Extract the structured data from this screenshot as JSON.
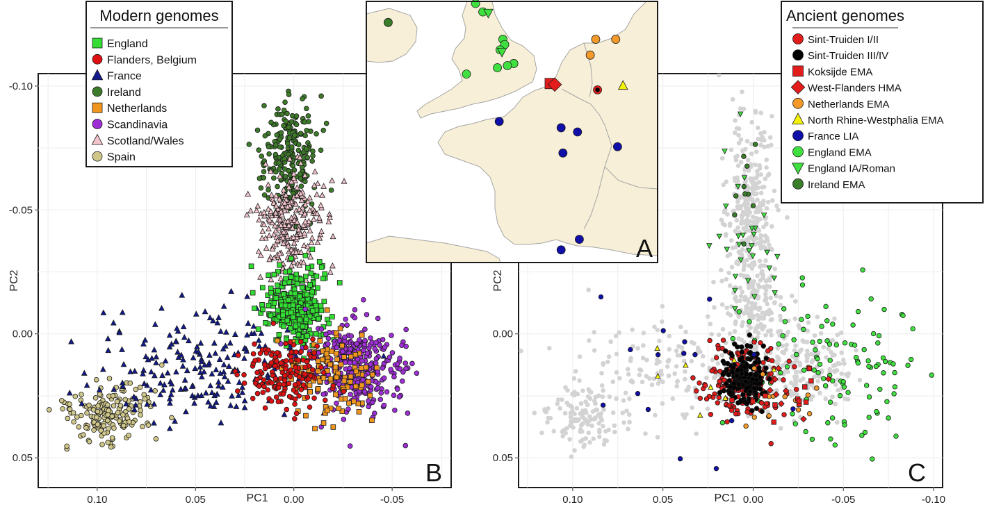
{
  "colors": {
    "England": "#33dd33",
    "Flanders": "#dd1111",
    "France": "#121a8c",
    "Ireland": "#3d7a2a",
    "Netherlands": "#f0961e",
    "Scandinavia": "#9e2fd6",
    "ScotlandWales": "#f2c3ca",
    "Spain": "#cfc68a",
    "SintTruiden12": "#e31c1c",
    "SintTruiden34": "#000000",
    "Koksijde": "#e31c1c",
    "WestFlanders": "#e31c1c",
    "NetherlandsEMA": "#f39a2a",
    "NRW": "#f5f20a",
    "FranceLIA": "#1010a8",
    "EnglandEMA": "#40e040",
    "EnglandIA": "#40e040",
    "IrelandEMA": "#3a7d2a",
    "background": "#d3d3d3",
    "map_land": "#f7efd7",
    "map_sea": "#ffffff"
  },
  "chart_data": [
    {
      "id": "B",
      "type": "scatter",
      "panel_label": "B",
      "xlabel": "PC1",
      "ylabel": "PC2",
      "x_reversed": true,
      "y_reversed": true,
      "xlim": [
        0.13,
        -0.08
      ],
      "ylim": [
        -0.105,
        0.062
      ],
      "xticks": [
        0.1,
        0.05,
        0.0,
        -0.05
      ],
      "xtick_labels": [
        "0.10",
        "0.05",
        "0.00",
        "-0.05"
      ],
      "yticks": [
        -0.1,
        -0.05,
        0.0,
        0.05
      ],
      "ytick_labels": [
        "-0.10",
        "-0.05",
        "0.00",
        "0.05"
      ],
      "grid": true,
      "legend": {
        "title": "Modern genomes",
        "entries": [
          {
            "label": "England",
            "marker": "square",
            "color": "#33dd33"
          },
          {
            "label": "Flanders, Belgium",
            "marker": "circle",
            "color": "#dd1111"
          },
          {
            "label": "France",
            "marker": "triangle",
            "color": "#121a8c"
          },
          {
            "label": "Ireland",
            "marker": "circle",
            "color": "#3d7a2a"
          },
          {
            "label": "Netherlands",
            "marker": "square",
            "color": "#f0961e"
          },
          {
            "label": "Scandinavia",
            "marker": "circle",
            "color": "#9e2fd6"
          },
          {
            "label": "Scotland/Wales",
            "marker": "triangle",
            "color": "#f2c3ca"
          },
          {
            "label": "Spain",
            "marker": "circle",
            "color": "#cfc68a"
          }
        ]
      },
      "clusters": [
        {
          "name": "Spain",
          "marker": "circle",
          "color": "#cfc68a",
          "cx": 0.094,
          "cy": 0.033,
          "sx": 0.011,
          "sy": 0.006,
          "n": 170
        },
        {
          "name": "France",
          "marker": "triangle",
          "color": "#121a8c",
          "cx": 0.05,
          "cy": 0.013,
          "sx": 0.028,
          "sy": 0.011,
          "n": 200
        },
        {
          "name": "Ireland",
          "marker": "circle",
          "color": "#3d7a2a",
          "cx": 0.002,
          "cy": -0.072,
          "sx": 0.007,
          "sy": 0.011,
          "n": 220
        },
        {
          "name": "Scotland/Wales",
          "marker": "triangle",
          "color": "#f2c3ca",
          "cx": 0.001,
          "cy": -0.045,
          "sx": 0.008,
          "sy": 0.011,
          "n": 260
        },
        {
          "name": "England",
          "marker": "square",
          "color": "#33dd33",
          "cx": -0.001,
          "cy": -0.01,
          "sx": 0.008,
          "sy": 0.008,
          "n": 300
        },
        {
          "name": "Scandinavia",
          "marker": "circle",
          "color": "#9e2fd6",
          "cx": -0.033,
          "cy": 0.013,
          "sx": 0.012,
          "sy": 0.009,
          "n": 330
        },
        {
          "name": "Netherlands",
          "marker": "square",
          "color": "#f0961e",
          "cx": -0.018,
          "cy": 0.018,
          "sx": 0.011,
          "sy": 0.009,
          "n": 120
        },
        {
          "name": "Flanders, Belgium",
          "marker": "circle",
          "color": "#dd1111",
          "cx": 0.004,
          "cy": 0.017,
          "sx": 0.01,
          "sy": 0.007,
          "n": 170
        }
      ]
    },
    {
      "id": "C",
      "type": "scatter",
      "panel_label": "C",
      "xlabel": "PC1",
      "ylabel": "PC2",
      "x_reversed": true,
      "y_reversed": true,
      "xlim": [
        0.13,
        -0.105
      ],
      "ylim": [
        -0.105,
        0.062
      ],
      "xticks": [
        0.1,
        0.05,
        0.0,
        -0.05,
        -0.1
      ],
      "xtick_labels": [
        "0.10",
        "0.05",
        "0.00",
        "-0.05",
        "-0.10"
      ],
      "yticks": [
        0.0,
        0.05
      ],
      "ytick_labels": [
        "0.00",
        "0.05"
      ],
      "grid": true,
      "legend": {
        "title": "Ancient genomes",
        "entries": [
          {
            "label": "Sint-Truiden I/II",
            "marker": "circle",
            "color": "#e31c1c"
          },
          {
            "label": "Sint-Truiden III/IV",
            "marker": "circle",
            "color": "#000000"
          },
          {
            "label": "Koksijde EMA",
            "marker": "square",
            "color": "#e31c1c"
          },
          {
            "label": "West-Flanders HMA",
            "marker": "diamond",
            "color": "#e31c1c"
          },
          {
            "label": "Netherlands EMA",
            "marker": "circle",
            "color": "#f39a2a"
          },
          {
            "label": "North Rhine-Westphalia EMA",
            "marker": "triangle",
            "color": "#f5f20a"
          },
          {
            "label": "France LIA",
            "marker": "circle",
            "color": "#1010a8"
          },
          {
            "label": "England EMA",
            "marker": "circle",
            "color": "#40e040"
          },
          {
            "label": "England IA/Roman",
            "marker": "triangle-down",
            "color": "#40e040"
          },
          {
            "label": "Ireland EMA",
            "marker": "circle",
            "color": "#3a7d2a"
          }
        ]
      },
      "clusters": [
        {
          "name": "Modern background (grey)",
          "marker": "circle",
          "color": "#d3d3d3",
          "cx": 0.0,
          "cy": -0.03,
          "sx": 0.03,
          "sy": 0.03,
          "n": 900
        },
        {
          "name": "England EMA",
          "marker": "circle",
          "color": "#40e040",
          "cx": -0.045,
          "cy": 0.015,
          "sx": 0.025,
          "sy": 0.015,
          "n": 110
        },
        {
          "name": "England IA/Roman",
          "marker": "triangle-down",
          "color": "#40e040",
          "cx": 0.005,
          "cy": -0.03,
          "sx": 0.01,
          "sy": 0.02,
          "n": 30
        },
        {
          "name": "Ireland EMA",
          "marker": "circle",
          "color": "#3a7d2a",
          "cx": 0.005,
          "cy": -0.06,
          "sx": 0.004,
          "sy": 0.015,
          "n": 10
        },
        {
          "name": "Sint-Truiden I/II",
          "marker": "circle",
          "color": "#e31c1c",
          "cx": 0.005,
          "cy": 0.02,
          "sx": 0.012,
          "sy": 0.008,
          "n": 150
        },
        {
          "name": "Sint-Truiden III/IV",
          "marker": "circle",
          "color": "#000000",
          "cx": 0.004,
          "cy": 0.017,
          "sx": 0.006,
          "sy": 0.005,
          "n": 200
        },
        {
          "name": "Netherlands EMA",
          "marker": "circle",
          "color": "#f39a2a",
          "cx": -0.02,
          "cy": 0.025,
          "sx": 0.015,
          "sy": 0.007,
          "n": 14
        },
        {
          "name": "France LIA",
          "marker": "circle",
          "color": "#1010a8",
          "cx": 0.05,
          "cy": 0.015,
          "sx": 0.03,
          "sy": 0.02,
          "n": 16
        },
        {
          "name": "Koksijde EMA",
          "marker": "square",
          "color": "#e31c1c",
          "cx": -0.02,
          "cy": 0.025,
          "sx": 0.015,
          "sy": 0.006,
          "n": 12
        },
        {
          "name": "West-Flanders HMA",
          "marker": "diamond",
          "color": "#e31c1c",
          "cx": -0.018,
          "cy": 0.027,
          "sx": 0.01,
          "sy": 0.005,
          "n": 8
        },
        {
          "name": "North Rhine-Westphalia EMA",
          "marker": "triangle",
          "color": "#f5f20a",
          "cx": 0.02,
          "cy": 0.03,
          "sx": 0.03,
          "sy": 0.015,
          "n": 8
        }
      ]
    }
  ],
  "map": {
    "panel_label": "A",
    "sites": [
      {
        "name": "England EMA",
        "marker": "circle",
        "color": "#40e040",
        "lon": -1.5,
        "lat": 54.9
      },
      {
        "name": "England EMA",
        "marker": "circle",
        "color": "#40e040",
        "lon": -1.1,
        "lat": 54.5
      },
      {
        "name": "England IA/Roman",
        "marker": "triangle-down",
        "color": "#40e040",
        "lon": -0.8,
        "lat": 54.45
      },
      {
        "name": "England EMA",
        "marker": "circle",
        "color": "#40e040",
        "lon": 0.0,
        "lat": 53.2
      },
      {
        "name": "England EMA",
        "marker": "circle",
        "color": "#40e040",
        "lon": 0.1,
        "lat": 52.95
      },
      {
        "name": "England EMA",
        "marker": "circle",
        "color": "#40e040",
        "lon": -0.15,
        "lat": 52.7
      },
      {
        "name": "England IA/Roman",
        "marker": "triangle-down",
        "color": "#40e040",
        "lon": -0.05,
        "lat": 52.6
      },
      {
        "name": "England EMA",
        "marker": "circle",
        "color": "#40e040",
        "lon": 0.6,
        "lat": 52.05
      },
      {
        "name": "England EMA",
        "marker": "circle",
        "color": "#40e040",
        "lon": 0.25,
        "lat": 51.95
      },
      {
        "name": "England EMA",
        "marker": "circle",
        "color": "#40e040",
        "lon": -0.3,
        "lat": 51.85
      },
      {
        "name": "England EMA",
        "marker": "circle",
        "color": "#40e040",
        "lon": -2.0,
        "lat": 51.55
      },
      {
        "name": "Ireland EMA",
        "marker": "circle",
        "color": "#3a7d2a",
        "lon": -6.3,
        "lat": 54.0
      },
      {
        "name": "Netherlands EMA",
        "marker": "circle",
        "color": "#f39a2a",
        "lon": 5.1,
        "lat": 53.2
      },
      {
        "name": "Netherlands EMA",
        "marker": "circle",
        "color": "#f39a2a",
        "lon": 6.2,
        "lat": 53.2
      },
      {
        "name": "Netherlands EMA",
        "marker": "circle",
        "color": "#f39a2a",
        "lon": 4.8,
        "lat": 52.45
      },
      {
        "name": "Koksijde EMA",
        "marker": "square",
        "color": "#e31c1c",
        "lon": 2.6,
        "lat": 51.1
      },
      {
        "name": "West-Flanders HMA",
        "marker": "diamond",
        "color": "#e31c1c",
        "lon": 2.85,
        "lat": 51.05
      },
      {
        "name": "Sint-Truiden I/II",
        "marker": "circle",
        "color": "#e31c1c",
        "lon": 5.2,
        "lat": 50.8
      },
      {
        "name": "Sint-Truiden III/IV",
        "marker": "circle",
        "color": "#000000",
        "lon": 5.2,
        "lat": 50.8
      },
      {
        "name": "North Rhine-Westphalia EMA",
        "marker": "triangle",
        "color": "#f5f20a",
        "lon": 6.6,
        "lat": 51.0
      },
      {
        "name": "France LIA",
        "marker": "circle",
        "color": "#1010a8",
        "lon": -0.2,
        "lat": 49.3
      },
      {
        "name": "France LIA",
        "marker": "circle",
        "color": "#1010a8",
        "lon": 3.2,
        "lat": 49.0
      },
      {
        "name": "France LIA",
        "marker": "circle",
        "color": "#1010a8",
        "lon": 4.1,
        "lat": 48.8
      },
      {
        "name": "France LIA",
        "marker": "circle",
        "color": "#1010a8",
        "lon": 3.3,
        "lat": 47.8
      },
      {
        "name": "France LIA",
        "marker": "circle",
        "color": "#1010a8",
        "lon": 6.3,
        "lat": 48.1
      },
      {
        "name": "France LIA",
        "marker": "circle",
        "color": "#1010a8",
        "lon": 4.2,
        "lat": 43.7
      },
      {
        "name": "France LIA",
        "marker": "circle",
        "color": "#1010a8",
        "lon": 3.2,
        "lat": 43.2
      }
    ]
  }
}
